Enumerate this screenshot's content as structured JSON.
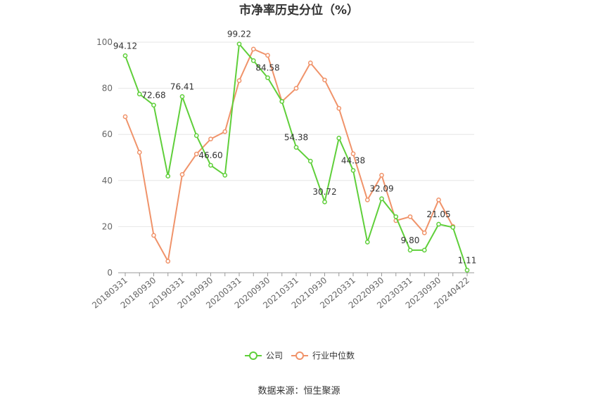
{
  "chart_data": {
    "type": "line",
    "title": "市净率历史分位（%）",
    "x": [
      "20180331",
      "20180630",
      "20180930",
      "20181231",
      "20190331",
      "20190630",
      "20190930",
      "20191231",
      "20200331",
      "20200630",
      "20200930",
      "20201231",
      "20210331",
      "20210630",
      "20210930",
      "20211231",
      "20220331",
      "20220630",
      "20220930",
      "20221231",
      "20230331",
      "20230630",
      "20230930",
      "20231231",
      "20240422"
    ],
    "x_tick_labels": [
      "20180331",
      "20180930",
      "20190331",
      "20190930",
      "20200331",
      "20200930",
      "20210331",
      "20210930",
      "20220331",
      "20220930",
      "20230331",
      "20230930",
      "20240422"
    ],
    "ylim": [
      0,
      100
    ],
    "y_ticks": [
      0,
      20,
      40,
      60,
      80,
      100
    ],
    "grid": true,
    "legend_position": "bottom",
    "series": [
      {
        "name": "公司",
        "color": "#5fcf3a",
        "values": [
          94.12,
          77.5,
          72.68,
          41.9,
          76.41,
          59.5,
          46.6,
          42.3,
          99.22,
          92.0,
          84.58,
          74.3,
          54.38,
          48.4,
          30.72,
          58.4,
          44.38,
          13.3,
          32.09,
          24.3,
          9.8,
          9.8,
          21.05,
          19.7,
          1.11
        ],
        "labels": {
          "0": "94.12",
          "2": "72.68",
          "4": "76.41",
          "6": "46.60",
          "8": "99.22",
          "10": "84.58",
          "12": "54.38",
          "14": "30.72",
          "16": "44.38",
          "18": "32.09",
          "20": "9.80",
          "22": "21.05",
          "24": "1.11"
        }
      },
      {
        "name": "行业中位数",
        "color": "#f0936a",
        "values": [
          67.7,
          52.2,
          16.2,
          5.0,
          42.6,
          51.5,
          58.0,
          61.2,
          83.3,
          97.0,
          94.3,
          74.3,
          80.0,
          91.0,
          83.6,
          71.3,
          51.6,
          31.6,
          42.3,
          22.6,
          24.3,
          17.3,
          31.6,
          20.1,
          null
        ]
      }
    ]
  },
  "source_text": "数据来源：恒生聚源"
}
